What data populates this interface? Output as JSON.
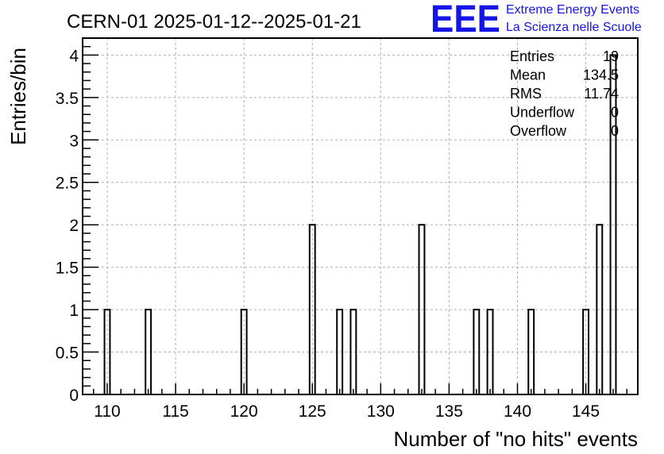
{
  "header": {
    "title": "CERN-01 2025-01-12--2025-01-21",
    "logo_text": "EEE",
    "logo_line1": "Extreme Energy Events",
    "logo_line2": "La Scienza nelle Scuole"
  },
  "stats": {
    "rows": [
      {
        "label": "Entries",
        "value": "19"
      },
      {
        "label": "Mean",
        "value": "134.5"
      },
      {
        "label": "RMS",
        "value": "11.74"
      },
      {
        "label": "Underflow",
        "value": "0"
      },
      {
        "label": "Overflow",
        "value": "0"
      }
    ]
  },
  "colors": {
    "logo": "#1515e8",
    "grid": "#b0b0b0",
    "line": "#000000"
  },
  "chart_data": {
    "type": "bar",
    "title": "CERN-01 2025-01-12--2025-01-21",
    "xlabel": "Number of \"no hits\" events",
    "ylabel": "Entries/bin",
    "xlim": [
      108.2,
      148.8
    ],
    "ylim": [
      0,
      4.2
    ],
    "grid": true,
    "x_ticks": [
      110,
      115,
      120,
      125,
      130,
      135,
      140,
      145
    ],
    "y_ticks": [
      0,
      0.5,
      1,
      1.5,
      2,
      2.5,
      3,
      3.5,
      4
    ],
    "y_tick_labels": [
      "0",
      "0.5",
      "1",
      "1.5",
      "2",
      "2.5",
      "3",
      "3.5",
      "4"
    ],
    "bins": [
      {
        "center": 110,
        "value": 1
      },
      {
        "center": 113,
        "value": 1
      },
      {
        "center": 120,
        "value": 1
      },
      {
        "center": 125,
        "value": 2
      },
      {
        "center": 127,
        "value": 1
      },
      {
        "center": 128,
        "value": 1
      },
      {
        "center": 133,
        "value": 2
      },
      {
        "center": 137,
        "value": 1
      },
      {
        "center": 138,
        "value": 1
      },
      {
        "center": 141,
        "value": 1
      },
      {
        "center": 145,
        "value": 1
      },
      {
        "center": 146,
        "value": 2
      },
      {
        "center": 147,
        "value": 4
      }
    ],
    "bin_width": 0.4
  }
}
